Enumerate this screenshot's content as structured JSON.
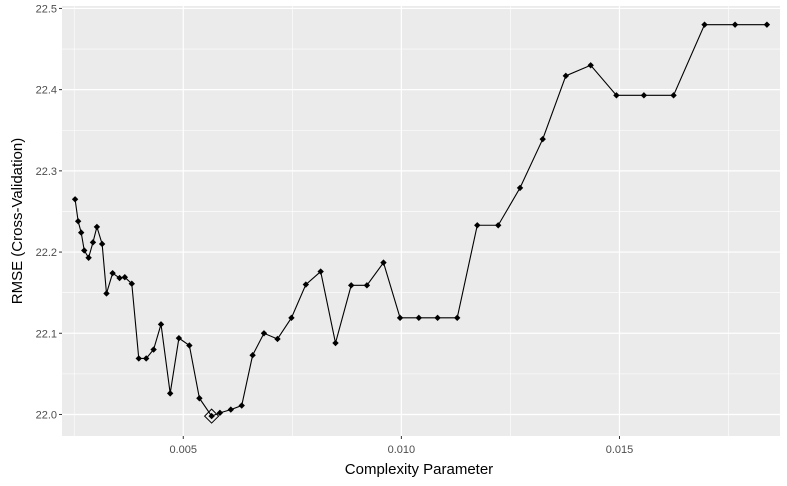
{
  "chart_data": {
    "type": "line",
    "title": "",
    "xlabel": "Complexity Parameter",
    "ylabel": "RMSE (Cross-Validation)",
    "xlim": [
      0.00222,
      0.01868
    ],
    "ylim": [
      21.9735,
      22.503
    ],
    "x_ticks": [
      0.005,
      0.01,
      0.015
    ],
    "x_tick_labels": [
      "0.005",
      "0.010",
      "0.015"
    ],
    "y_ticks": [
      22.0,
      22.1,
      22.2,
      22.3,
      22.4,
      22.5
    ],
    "y_tick_labels": [
      "22.0",
      "22.1",
      "22.2",
      "22.3",
      "22.4",
      "22.5"
    ],
    "grid": true,
    "legend": "none",
    "colors": {
      "panel": "#ebebeb",
      "grid": "#ffffff",
      "line": "#000000",
      "point": "#000000"
    },
    "series": [
      {
        "x": [
          0.00252,
          0.00259,
          0.00266,
          0.00273,
          0.00283,
          0.00293,
          0.00302,
          0.00314,
          0.00324,
          0.00338,
          0.00354,
          0.00366,
          0.00382,
          0.00398,
          0.00415,
          0.00432,
          0.00449,
          0.0047,
          0.0049,
          0.00514,
          0.00537,
          0.00565,
          0.00584,
          0.00609,
          0.00634,
          0.00659,
          0.00685,
          0.00716,
          0.00748,
          0.00781,
          0.00815,
          0.00849,
          0.00885,
          0.00921,
          0.00959,
          0.00997,
          0.0104,
          0.01083,
          0.01128,
          0.01174,
          0.01222,
          0.01272,
          0.01324,
          0.01377,
          0.01434,
          0.01493,
          0.01556,
          0.01624,
          0.01695,
          0.01765,
          0.01838
        ],
        "y": [
          22.265,
          22.238,
          22.224,
          22.202,
          22.193,
          22.212,
          22.231,
          22.21,
          22.149,
          22.174,
          22.168,
          22.169,
          22.161,
          22.069,
          22.069,
          22.08,
          22.111,
          22.026,
          22.094,
          22.085,
          22.02,
          21.998,
          22.002,
          22.006,
          22.011,
          22.073,
          22.1,
          22.093,
          22.119,
          22.16,
          22.176,
          22.088,
          22.159,
          22.159,
          22.187,
          22.119,
          22.119,
          22.119,
          22.119,
          22.233,
          22.233,
          22.279,
          22.339,
          22.417,
          22.43,
          22.393,
          22.393,
          22.393,
          22.48,
          22.48,
          22.48
        ]
      }
    ],
    "highlight": {
      "x": 0.00565,
      "y": 21.998,
      "marker": "diamond-open"
    }
  }
}
